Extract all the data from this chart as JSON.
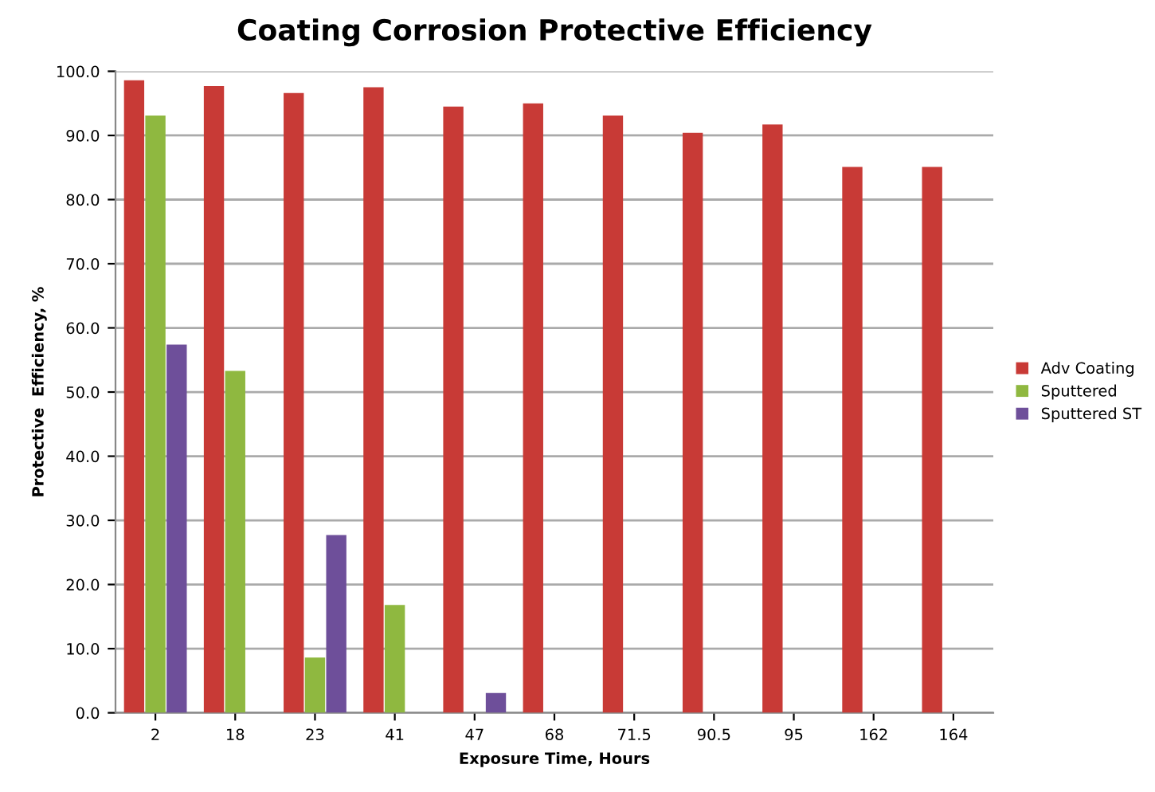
{
  "chart_data": {
    "type": "bar",
    "title": "Coating Corrosion Protective Efficiency",
    "xlabel": "Exposure Time, Hours",
    "ylabel": "Protective  Efficiency, %",
    "categories": [
      "2",
      "18",
      "23",
      "41",
      "47",
      "68",
      "71.5",
      "90.5",
      "95",
      "162",
      "164"
    ],
    "series": [
      {
        "name": "Adv Coating",
        "color": "#c83a36",
        "values": [
          98.6,
          97.7,
          96.6,
          97.5,
          94.5,
          95.0,
          93.1,
          90.4,
          91.7,
          85.1,
          85.1
        ]
      },
      {
        "name": "Sputtered",
        "color": "#8fb840",
        "values": [
          93.1,
          53.3,
          8.6,
          16.8,
          null,
          null,
          null,
          null,
          null,
          null,
          null
        ]
      },
      {
        "name": "Sputtered ST",
        "color": "#6e4f9a",
        "values": [
          57.4,
          null,
          27.7,
          null,
          3.1,
          null,
          null,
          null,
          null,
          null,
          null
        ]
      }
    ],
    "ylim": [
      0,
      100
    ],
    "yticks": [
      {
        "value": 0,
        "label": "0.0"
      },
      {
        "value": 10,
        "label": "10.0"
      },
      {
        "value": 20,
        "label": "20.0"
      },
      {
        "value": 30,
        "label": "30.0"
      },
      {
        "value": 40,
        "label": "40.0"
      },
      {
        "value": 50,
        "label": "50.0"
      },
      {
        "value": 60,
        "label": "60.0"
      },
      {
        "value": 70,
        "label": "70.0"
      },
      {
        "value": 80,
        "label": "80.0"
      },
      {
        "value": 90,
        "label": "90.0"
      },
      {
        "value": 100,
        "label": "100.0"
      }
    ],
    "grid": "y",
    "legend": "right"
  }
}
